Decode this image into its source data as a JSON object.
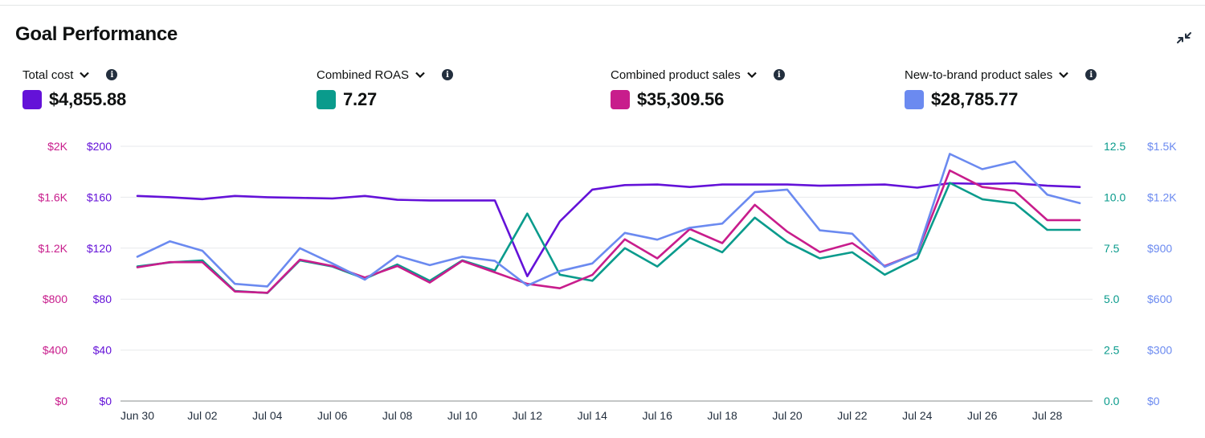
{
  "header": {
    "title": "Goal Performance",
    "collapse_icon": "collapse-icon"
  },
  "metrics": [
    {
      "label": "Total cost",
      "value": "$4,855.88",
      "color": "#6412d8"
    },
    {
      "label": "Combined ROAS",
      "value": "7.27",
      "color": "#0a9b8c"
    },
    {
      "label": "Combined product sales",
      "value": "$35,309.56",
      "color": "#c81d8c"
    },
    {
      "label": "New-to-brand product sales",
      "value": "$28,785.77",
      "color": "#6b8af0"
    }
  ],
  "chart_data": {
    "type": "line",
    "x": [
      "Jun 30",
      "Jul 01",
      "Jul 02",
      "Jul 03",
      "Jul 04",
      "Jul 05",
      "Jul 06",
      "Jul 07",
      "Jul 08",
      "Jul 09",
      "Jul 10",
      "Jul 11",
      "Jul 12",
      "Jul 13",
      "Jul 14",
      "Jul 15",
      "Jul 16",
      "Jul 17",
      "Jul 18",
      "Jul 19",
      "Jul 20",
      "Jul 21",
      "Jul 22",
      "Jul 23",
      "Jul 24",
      "Jul 25",
      "Jul 26",
      "Jul 27",
      "Jul 28",
      "Jul 29"
    ],
    "x_tick_labels": [
      "Jun 30",
      "Jul 02",
      "Jul 04",
      "Jul 06",
      "Jul 08",
      "Jul 10",
      "Jul 12",
      "Jul 14",
      "Jul 16",
      "Jul 18",
      "Jul 20",
      "Jul 22",
      "Jul 24",
      "Jul 26",
      "Jul 28"
    ],
    "axes": {
      "left_outer": {
        "ticks": [
          "$0",
          "$400",
          "$800",
          "$1.2K",
          "$1.6K",
          "$2K"
        ],
        "color": "#c81d8c"
      },
      "left_inner": {
        "ticks": [
          "$0",
          "$40",
          "$80",
          "$120",
          "$160",
          "$200"
        ],
        "color": "#6412d8"
      },
      "right_inner": {
        "ticks": [
          "0.0",
          "2.5",
          "5.0",
          "7.5",
          "10.0",
          "12.5"
        ],
        "color": "#0a9b8c"
      },
      "right_outer": {
        "ticks": [
          "$0",
          "$300",
          "$600",
          "$900",
          "$1.2K",
          "$1.5K"
        ],
        "color": "#6b8af0"
      }
    },
    "grid": true,
    "series": [
      {
        "name": "Total cost",
        "axis": "left_inner",
        "max": 200,
        "color": "#6412d8",
        "values": [
          161,
          160,
          158.5,
          161,
          160,
          159.5,
          159,
          161,
          158,
          157.5,
          157.5,
          157.5,
          98,
          141,
          166,
          169.5,
          170,
          168,
          170,
          170,
          170,
          169,
          169.5,
          170,
          167.5,
          171,
          170.5,
          171,
          169,
          168
        ]
      },
      {
        "name": "Combined ROAS",
        "axis": "right_inner",
        "max": 12.5,
        "color": "#0a9b8c",
        "values": [
          6.6,
          6.8,
          6.9,
          5.4,
          5.3,
          6.9,
          6.6,
          6.0,
          6.7,
          5.9,
          6.9,
          6.4,
          9.2,
          6.2,
          5.9,
          7.5,
          6.6,
          8.0,
          7.3,
          9.0,
          7.8,
          7.0,
          7.3,
          6.2,
          7.0,
          10.7,
          9.9,
          9.7,
          8.4,
          8.4
        ]
      },
      {
        "name": "Combined product sales",
        "axis": "left_outer",
        "max": 2000,
        "color": "#c81d8c",
        "values": [
          1050,
          1090,
          1090,
          860,
          850,
          1110,
          1060,
          970,
          1060,
          930,
          1100,
          1010,
          920,
          885,
          990,
          1270,
          1120,
          1350,
          1240,
          1540,
          1330,
          1170,
          1240,
          1060,
          1160,
          1810,
          1680,
          1650,
          1420,
          1420
        ]
      },
      {
        "name": "New-to-brand product sales",
        "axis": "right_outer",
        "max": 1500,
        "color": "#6b8af0",
        "values": [
          850,
          940,
          885,
          690,
          675,
          900,
          810,
          715,
          855,
          800,
          850,
          825,
          680,
          765,
          810,
          990,
          950,
          1020,
          1045,
          1230,
          1245,
          1005,
          985,
          790,
          870,
          1455,
          1365,
          1410,
          1215,
          1165
        ]
      }
    ]
  }
}
